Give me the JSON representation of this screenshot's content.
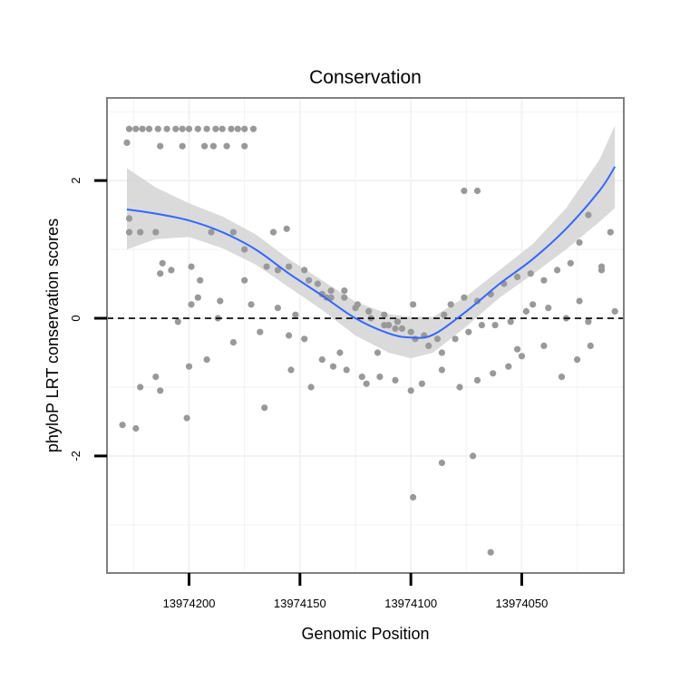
{
  "chart_data": {
    "type": "scatter",
    "title": "Conservation",
    "xlabel": "Genomic Position",
    "ylabel": "phyloP LRT conservation scores",
    "x_reversed": true,
    "xlim": [
      13974237,
      13974004
    ],
    "ylim": [
      -3.7,
      3.2
    ],
    "x_ticks": [
      13974200,
      13974150,
      13974100,
      13974050
    ],
    "y_ticks": [
      -2,
      0,
      2
    ],
    "y_tick_labels": [
      "-2",
      "0",
      "2"
    ],
    "reference_line": {
      "y": 0,
      "style": "dashed"
    },
    "grid": true,
    "colors": {
      "points": "#999999",
      "smooth_line": "#3366ff",
      "confidence_band": "#d3d3d3",
      "panel_border": "#808080",
      "grid": "#f2f2f2"
    },
    "smooth": {
      "x": [
        13974228,
        13974215,
        13974200,
        13974185,
        13974170,
        13974155,
        13974140,
        13974125,
        13974110,
        13974100,
        13974090,
        13974075,
        13974060,
        13974045,
        13974030,
        13974015,
        13974008
      ],
      "y": [
        1.58,
        1.52,
        1.42,
        1.25,
        1.0,
        0.65,
        0.33,
        0.0,
        -0.22,
        -0.28,
        -0.24,
        0.1,
        0.5,
        0.86,
        1.3,
        1.85,
        2.2
      ],
      "lower": [
        1.0,
        1.15,
        1.18,
        1.02,
        0.78,
        0.45,
        0.12,
        -0.25,
        -0.5,
        -0.58,
        -0.5,
        -0.12,
        0.3,
        0.64,
        1.0,
        1.4,
        1.6
      ],
      "upper": [
        2.18,
        1.9,
        1.67,
        1.48,
        1.22,
        0.86,
        0.55,
        0.24,
        0.06,
        0.02,
        0.02,
        0.32,
        0.7,
        1.08,
        1.6,
        2.3,
        2.8
      ]
    },
    "points": {
      "x": [
        13974227,
        13974224,
        13974221,
        13974218,
        13974214,
        13974210,
        13974206,
        13974203,
        13974200,
        13974196,
        13974192,
        13974188,
        13974185,
        13974181,
        13974178,
        13974175,
        13974171,
        13974213,
        13974203,
        13974193,
        13974189,
        13974183,
        13974175,
        13974228,
        13974227,
        13974222,
        13974215,
        13974212,
        13974190,
        13974175,
        13974162,
        13974156,
        13974227,
        13974213,
        13974208,
        13974195,
        13974186,
        13974172,
        13974160,
        13974152,
        13974146,
        13974140,
        13974136,
        13974130,
        13974124,
        13974119,
        13974112,
        13974106,
        13974100,
        13974094,
        13974088,
        13974082,
        13974076,
        13974070,
        13974064,
        13974058,
        13974052,
        13974046,
        13974040,
        13974034,
        13974028,
        13974024,
        13974020,
        13974014,
        13974010,
        13974205,
        13974199,
        13974196,
        13974187,
        13974180,
        13974175,
        13974165,
        13974160,
        13974155,
        13974148,
        13974142,
        13974136,
        13974130,
        13974125,
        13974118,
        13974110,
        13974104,
        13974098,
        13974092,
        13974086,
        13974080,
        13974074,
        13974068,
        13974062,
        13974055,
        13974048,
        13974045,
        13974038,
        13974030,
        13974020,
        13974222,
        13974215,
        13974200,
        13974192,
        13974180,
        13974168,
        13974155,
        13974148,
        13974140,
        13974132,
        13974120,
        13974114,
        13974107,
        13974100,
        13974095,
        13974086,
        13974078,
        13974070,
        13974063,
        13974056,
        13974050,
        13974040,
        13974032,
        13974025,
        13974019,
        13974230,
        13974224,
        13974213,
        13974201,
        13974166,
        13974154,
        13974145,
        13974135,
        13974129,
        13974122,
        13974115,
        13974099,
        13974086,
        13974072,
        13974064,
        13974052,
        13974024,
        13974199,
        13974138,
        13974112,
        13974107,
        13974076,
        13974070,
        13974099,
        13974085,
        13974014,
        13974008
      ],
      "y": [
        2.75,
        2.75,
        2.75,
        2.75,
        2.75,
        2.75,
        2.75,
        2.75,
        2.75,
        2.75,
        2.75,
        2.75,
        2.75,
        2.75,
        2.75,
        2.75,
        2.75,
        2.5,
        2.5,
        2.5,
        2.5,
        2.5,
        2.5,
        2.55,
        1.45,
        1.25,
        1.25,
        0.8,
        1.25,
        1.0,
        1.25,
        1.3,
        1.25,
        0.65,
        0.7,
        0.55,
        0.25,
        0.2,
        0.15,
        0.05,
        0.55,
        0.35,
        0.3,
        0.4,
        0.2,
        0.1,
        -0.1,
        -0.05,
        -0.2,
        -0.25,
        -0.3,
        0.2,
        0.3,
        0.25,
        0.35,
        0.5,
        0.6,
        0.65,
        0.55,
        0.7,
        0.8,
        1.1,
        1.5,
        0.75,
        1.25,
        -0.05,
        0.2,
        0.3,
        0.0,
        1.25,
        0.55,
        0.75,
        0.7,
        0.75,
        0.7,
        0.5,
        0.4,
        0.3,
        0.15,
        0.0,
        -0.1,
        -0.15,
        -0.3,
        -0.4,
        -0.5,
        -0.3,
        -0.2,
        -0.1,
        -0.1,
        -0.05,
        0.1,
        0.2,
        0.15,
        0.0,
        -0.05,
        -1.0,
        -0.85,
        -0.7,
        -0.6,
        -0.35,
        -0.2,
        -0.25,
        -0.3,
        -0.6,
        -0.5,
        -0.95,
        -0.85,
        -0.9,
        -1.05,
        -0.95,
        -0.75,
        -1.0,
        -0.9,
        -0.8,
        -0.7,
        -0.55,
        -0.4,
        -0.85,
        -0.6,
        -0.4,
        -1.55,
        -1.6,
        -1.05,
        -1.45,
        -1.3,
        -0.75,
        -1.0,
        -0.7,
        -0.75,
        -0.85,
        -0.5,
        -2.6,
        -2.1,
        -2.0,
        -3.4,
        -0.45,
        0.25,
        0.75,
        0.3,
        0.05,
        -0.15,
        1.85,
        1.85,
        0.2,
        0.05,
        0.7,
        0.1
      ]
    }
  }
}
